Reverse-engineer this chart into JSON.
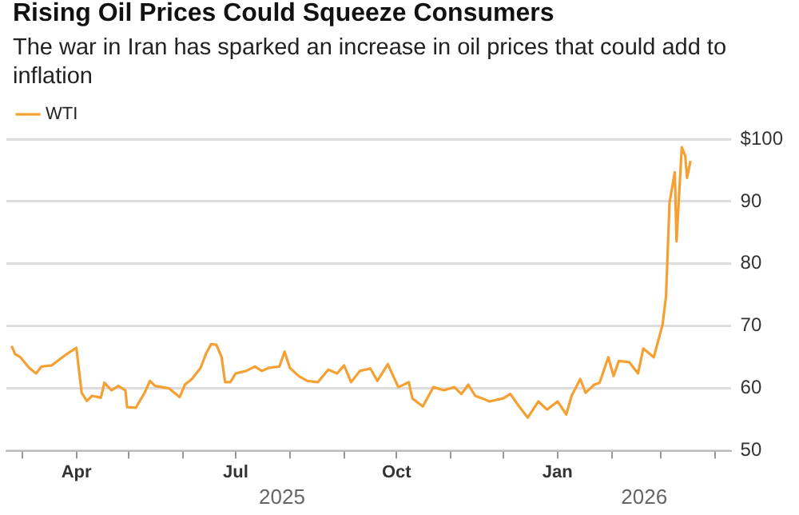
{
  "chart_data": {
    "type": "line",
    "title": "Rising Oil Prices Could Squeeze Consumers",
    "subtitle": "The war in Iran has sparked an increase in oil prices that could add to inflation",
    "x": [
      "2025-02-23",
      "2025-02-25",
      "2025-02-28",
      "2025-03-05",
      "2025-03-09",
      "2025-03-12",
      "2025-03-18",
      "2025-03-24",
      "2025-03-28",
      "2025-04-01",
      "2025-04-04",
      "2025-04-07",
      "2025-04-10",
      "2025-04-15",
      "2025-04-17",
      "2025-04-21",
      "2025-04-25",
      "2025-04-29",
      "2025-04-30",
      "2025-05-05",
      "2025-05-10",
      "2025-05-13",
      "2025-05-16",
      "2025-05-24",
      "2025-05-30",
      "2025-06-02",
      "2025-06-06",
      "2025-06-11",
      "2025-06-14",
      "2025-06-17",
      "2025-06-20",
      "2025-06-23",
      "2025-06-25",
      "2025-06-28",
      "2025-07-01",
      "2025-07-07",
      "2025-07-12",
      "2025-07-16",
      "2025-07-20",
      "2025-07-26",
      "2025-07-29",
      "2025-08-01",
      "2025-08-06",
      "2025-08-11",
      "2025-08-17",
      "2025-08-23",
      "2025-08-28",
      "2025-09-01",
      "2025-09-05",
      "2025-09-10",
      "2025-09-16",
      "2025-09-20",
      "2025-09-26",
      "2025-10-02",
      "2025-10-08",
      "2025-10-10",
      "2025-10-16",
      "2025-10-22",
      "2025-10-28",
      "2025-11-03",
      "2025-11-07",
      "2025-11-11",
      "2025-11-15",
      "2025-11-19",
      "2025-11-23",
      "2025-12-01",
      "2025-12-05",
      "2025-12-10",
      "2025-12-15",
      "2025-12-21",
      "2025-12-26",
      "2026-01-01",
      "2026-01-03",
      "2026-01-06",
      "2026-01-09",
      "2026-01-14",
      "2026-01-17",
      "2026-01-22",
      "2026-01-25",
      "2026-01-30",
      "2026-02-02",
      "2026-02-05",
      "2026-02-11",
      "2026-02-16",
      "2026-02-19",
      "2026-02-25",
      "2026-03-02",
      "2026-03-04",
      "2026-03-06",
      "2026-03-09",
      "2026-03-10",
      "2026-03-13",
      "2026-03-15",
      "2026-03-16",
      "2026-03-18"
    ],
    "series": [
      {
        "name": "WTI",
        "color": "#f5a032",
        "values": [
          66.8,
          65.5,
          65,
          63.3,
          62.4,
          63.5,
          63.7,
          65,
          65.8,
          66.5,
          59.3,
          58,
          58.8,
          58.5,
          60.9,
          59.7,
          60.4,
          59.7,
          57,
          56.9,
          59.3,
          61.2,
          60.4,
          60,
          58.6,
          60.6,
          61.5,
          63.3,
          65.5,
          67.1,
          67,
          65,
          61,
          61,
          62.4,
          62.8,
          63.5,
          62.8,
          63.3,
          63.5,
          65.9,
          63.3,
          62,
          61.2,
          61,
          63,
          62.4,
          63.7,
          61,
          62.8,
          63.2,
          61.2,
          63.9,
          60.2,
          61,
          58.4,
          57.1,
          60.2,
          59.7,
          60.2,
          59.1,
          60.6,
          58.8,
          58.4,
          57.9,
          58.4,
          59.1,
          57.1,
          55.3,
          57.9,
          56.6,
          57.9,
          57.1,
          55.8,
          58.8,
          61.5,
          59.3,
          60.6,
          60.9,
          65,
          62,
          64.4,
          64.2,
          62.4,
          66.4,
          65,
          70.2,
          74.8,
          89.8,
          94.7,
          83.6,
          98.7,
          97.3,
          93.8,
          96.5
        ]
      }
    ],
    "xlim": [
      "2025-02-20",
      "2026-04-10"
    ],
    "xticks": [
      {
        "value": "2025-03-01",
        "label": null
      },
      {
        "value": "2025-04-01",
        "label": "Apr"
      },
      {
        "value": "2025-05-01",
        "label": null
      },
      {
        "value": "2025-06-01",
        "label": null
      },
      {
        "value": "2025-07-01",
        "label": "Jul"
      },
      {
        "value": "2025-08-01",
        "label": null
      },
      {
        "value": "2025-09-01",
        "label": null
      },
      {
        "value": "2025-10-01",
        "label": "Oct"
      },
      {
        "value": "2025-11-01",
        "label": null
      },
      {
        "value": "2025-12-01",
        "label": null
      },
      {
        "value": "2026-01-01",
        "label": "Jan"
      },
      {
        "value": "2026-02-01",
        "label": null
      },
      {
        "value": "2026-03-01",
        "label": null
      },
      {
        "value": "2026-04-01",
        "label": null
      }
    ],
    "ylim": [
      50,
      100
    ],
    "yticks": [
      50,
      60,
      70,
      80,
      90,
      {
        "value": 100,
        "label": "$100"
      }
    ],
    "annotations": [
      "2025",
      "2026"
    ],
    "grid": "y",
    "legend": "top left",
    "marker": "none",
    "line_style": "solid"
  }
}
